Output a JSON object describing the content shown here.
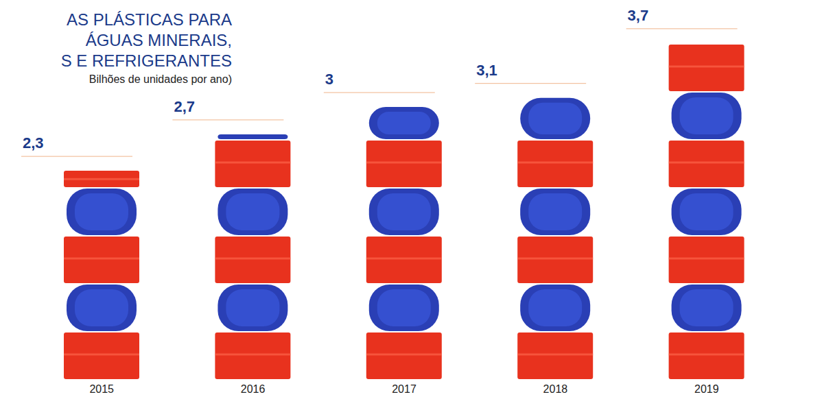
{
  "chart_data": {
    "type": "bar",
    "title": [
      "AS PLÁSTICAS PARA",
      "ÁGUAS MINERAIS,",
      "S E REFRIGERANTES"
    ],
    "subtitle": "Bilhões de unidades por ano)",
    "categories": [
      "2015",
      "2016",
      "2017",
      "2018",
      "2019"
    ],
    "values": [
      2.3,
      2.7,
      3,
      3.1,
      3.7
    ],
    "value_labels": [
      "2,3",
      "2,7",
      "3",
      "3,1",
      "3,7"
    ],
    "color": "#e8321e",
    "ylim": [
      0,
      4
    ],
    "data_labels": true,
    "tick_labels": "x",
    "grid": false
  }
}
